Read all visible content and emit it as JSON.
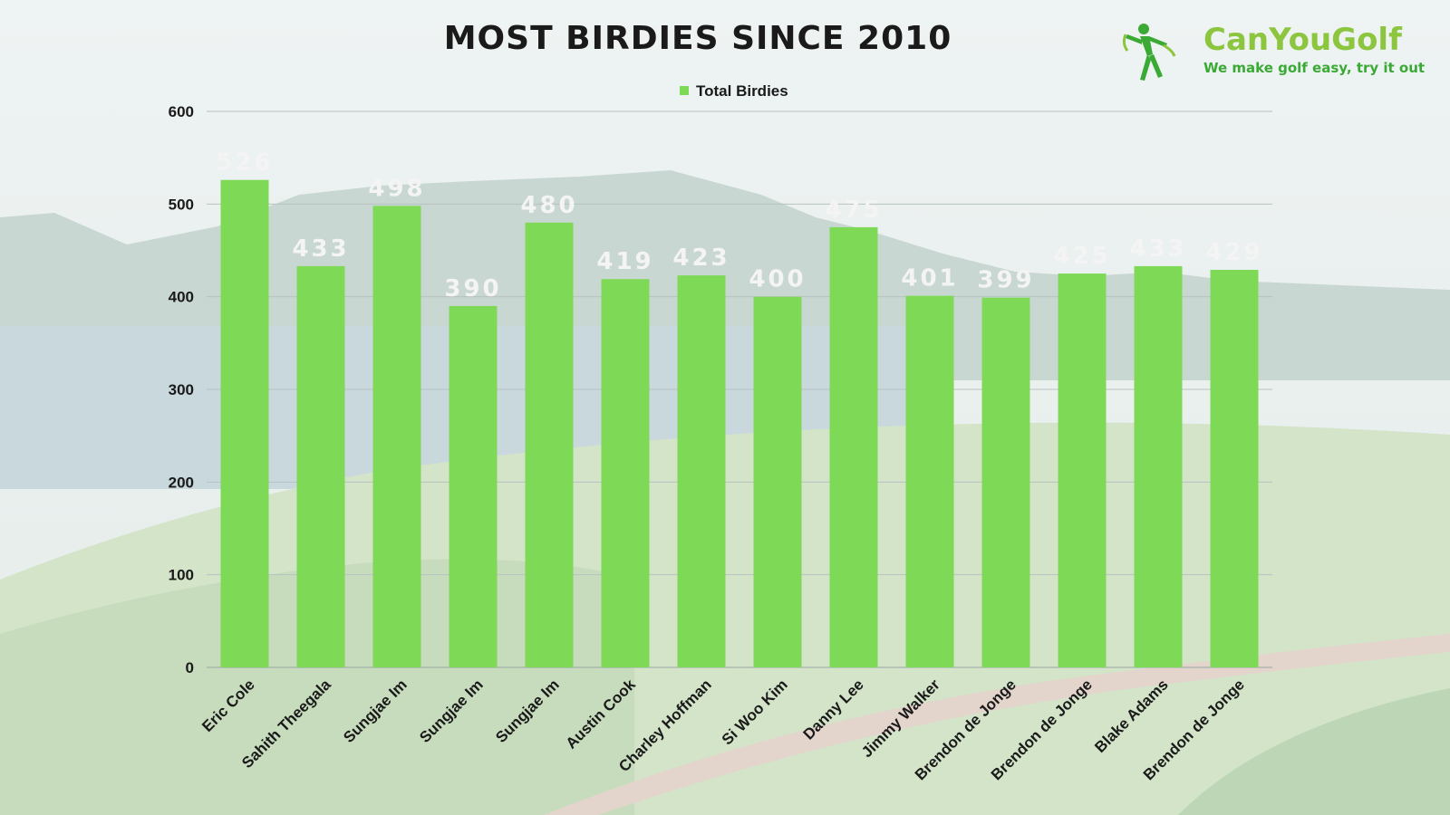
{
  "logo": {
    "name": "CanYouGolf",
    "tagline": "We make golf easy, try it out"
  },
  "colors": {
    "bar": "#7ed957",
    "value_label": "#f4f4f4",
    "logo_green": "#8cc63f",
    "logo_dark_green": "#3aaa35"
  },
  "chart_data": {
    "type": "bar",
    "title": "MOST BIRDIES SINCE 2010",
    "xlabel": "",
    "ylabel": "",
    "ylim": [
      0,
      600
    ],
    "yticks": [
      "0",
      "100",
      "200",
      "300",
      "400",
      "500",
      "600"
    ],
    "grid": true,
    "legend_position": "top-center",
    "categories": [
      "Eric Cole",
      "Sahith Theegala",
      "Sungjae Im",
      "Sungjae Im",
      "Sungjae Im",
      "Austin Cook",
      "Charley Hoffman",
      "Si Woo Kim",
      "Danny Lee",
      "Jimmy Walker",
      "Brendon de Jonge",
      "Brendon de Jonge",
      "Blake Adams",
      "Brendon de Jonge"
    ],
    "series": [
      {
        "name": "Total Birdies",
        "values": [
          526,
          433,
          498,
          390,
          480,
          419,
          423,
          400,
          475,
          401,
          399,
          425,
          433,
          429
        ]
      }
    ]
  }
}
